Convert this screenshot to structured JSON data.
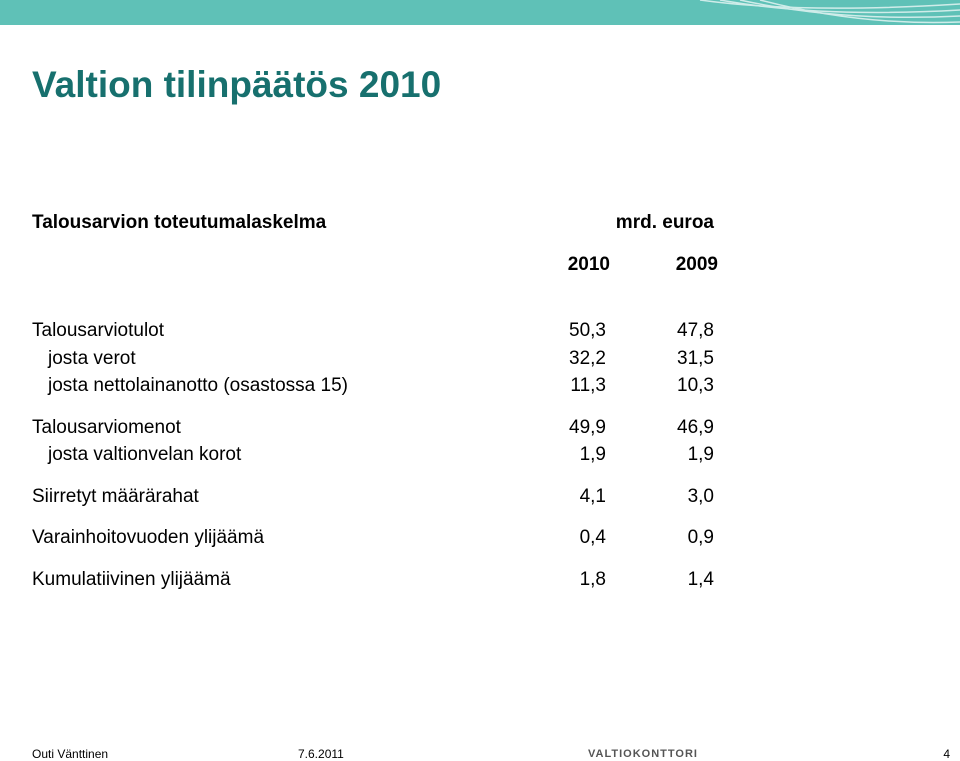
{
  "header": {
    "title": "Valtion tilinpäätös 2010"
  },
  "table": {
    "caption": "Talousarvion toteutumalaskelma",
    "unit": "mrd. euroa",
    "columns": [
      "2010",
      "2009"
    ],
    "sections": [
      [
        [
          "Talousarviotulot",
          "50,3",
          "47,8"
        ],
        [
          "josta verot",
          "32,2",
          "31,5"
        ],
        [
          "josta nettolainanotto (osastossa 15)",
          "11,3",
          "10,3"
        ]
      ],
      [
        [
          "Talousarviomenot",
          "49,9",
          "46,9"
        ],
        [
          "josta valtionvelan korot",
          "1,9",
          "1,9"
        ]
      ],
      [
        [
          "Siirretyt määrärahat",
          "4,1",
          "3,0"
        ]
      ],
      [
        [
          "Varainhoitovuoden ylijäämä",
          "0,4",
          "0,9"
        ]
      ],
      [
        [
          "Kumulatiivinen ylijäämä",
          "1,8",
          "1,4"
        ]
      ]
    ]
  },
  "footer": {
    "author": "Outi Vänttinen",
    "date": "7.6.2011",
    "logo": "VALTIOKONTTORI",
    "page": "4"
  }
}
